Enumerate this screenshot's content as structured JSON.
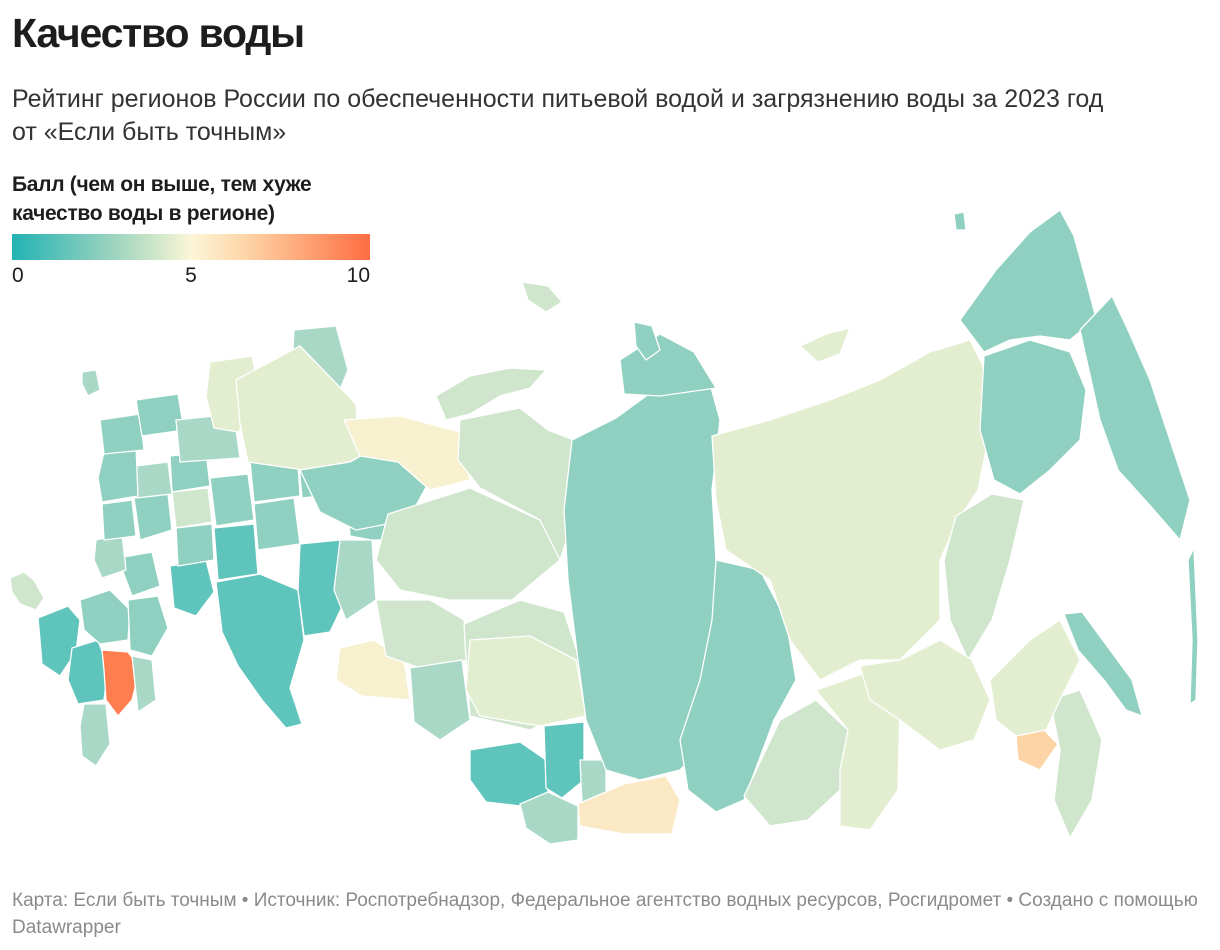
{
  "header": {
    "title": "Качество воды",
    "subtitle": "Рейтинг регионов России по обеспеченности питьевой водой и загрязнению воды за 2023 год от «Если быть точным»"
  },
  "legend": {
    "title": "Балл (чем он выше, тем хуже качество воды в регионе)",
    "min_label": "0",
    "mid_label": "5",
    "max_label": "10",
    "scale": {
      "min": 0,
      "mid": 5,
      "max": 10
    },
    "colors": {
      "low": "#22b3b3",
      "low_mid": "#8fcfbe",
      "mid": "#fdf6d8",
      "high_mid": "#fdd5a8",
      "high": "#ff6d43"
    }
  },
  "map": {
    "type": "choropleth",
    "region_colors": {
      "teal_dark": "#5ec4bc",
      "teal": "#8fd0c0",
      "teal_light": "#a9d9c6",
      "green_light": "#cfe6cd",
      "cream_green": "#e3edcf",
      "cream": "#f7f1cf",
      "cream_orange": "#fbe8c5",
      "peach": "#fdd4a5",
      "orange": "#ff7e50"
    }
  },
  "footer": {
    "credit": "Карта: Если быть точным • Источник: Роспотребнадзор, Федеральное агентство водных ресурсов, Росгидромет • Создано с помощью Datawrapper"
  }
}
